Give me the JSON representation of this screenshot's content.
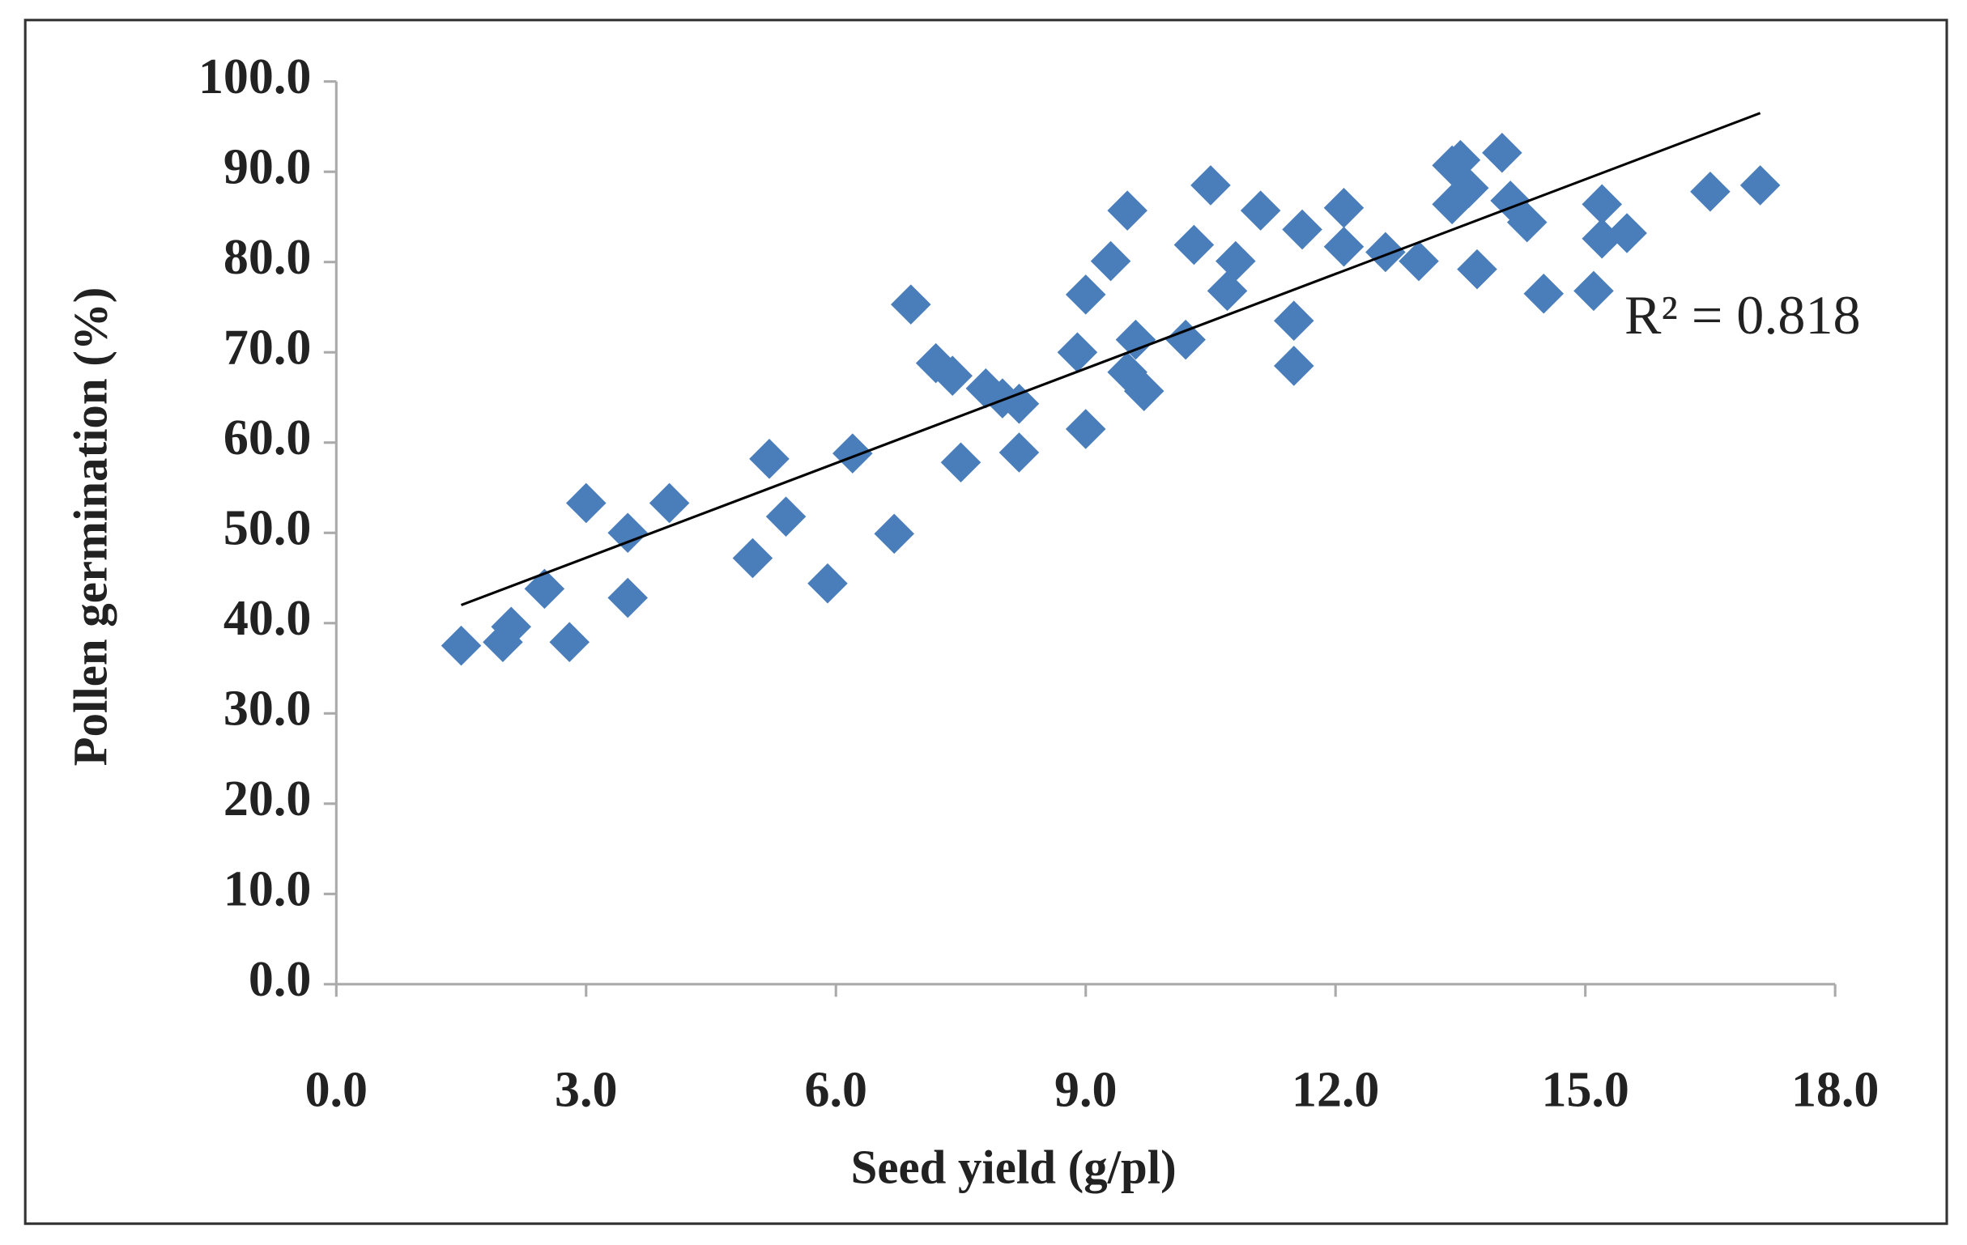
{
  "chart_data": {
    "type": "scatter",
    "x_label": "Seed yield (g/pl)",
    "y_label": "Pollen germination (%)",
    "annotation": "R² = 0.818",
    "xlim": [
      0,
      18
    ],
    "ylim": [
      0,
      100
    ],
    "xticks": [
      {
        "value": 0,
        "label": "0.0"
      },
      {
        "value": 3,
        "label": "3.0"
      },
      {
        "value": 6,
        "label": "6.0"
      },
      {
        "value": 9,
        "label": "9.0"
      },
      {
        "value": 12,
        "label": "12.0"
      },
      {
        "value": 15,
        "label": "15.0"
      },
      {
        "value": 18,
        "label": "18.0"
      }
    ],
    "yticks": [
      {
        "value": 0,
        "label": "0.0"
      },
      {
        "value": 10,
        "label": "10.0"
      },
      {
        "value": 20,
        "label": "20.0"
      },
      {
        "value": 30,
        "label": "30.0"
      },
      {
        "value": 40,
        "label": "40.0"
      },
      {
        "value": 50,
        "label": "50.0"
      },
      {
        "value": 60,
        "label": "60.0"
      },
      {
        "value": 70,
        "label": "70.0"
      },
      {
        "value": 80,
        "label": "80.0"
      },
      {
        "value": 90,
        "label": "90.0"
      },
      {
        "value": 100,
        "label": "100.0"
      }
    ],
    "color": "#4a7ebb",
    "x": [
      1.5,
      2.0,
      2.1,
      2.5,
      2.8,
      3.0,
      3.5,
      3.5,
      4.0,
      5.0,
      5.2,
      5.4,
      5.9,
      6.2,
      6.7,
      6.9,
      7.2,
      7.4,
      7.5,
      7.8,
      8.0,
      8.2,
      8.2,
      8.9,
      9.0,
      9.0,
      9.3,
      9.5,
      9.5,
      9.6,
      9.7,
      10.2,
      10.3,
      10.5,
      10.7,
      10.8,
      11.1,
      11.5,
      11.5,
      11.6,
      12.1,
      12.1,
      12.6,
      13.0,
      13.4,
      13.4,
      13.5,
      13.6,
      13.7,
      14.0,
      14.1,
      14.3,
      14.5,
      15.1,
      15.2,
      15.2,
      15.5,
      16.5,
      17.1
    ],
    "values": [
      37.5,
      37.9,
      39.6,
      43.8,
      37.9,
      53.3,
      42.8,
      50.0,
      53.3,
      47.2,
      58.2,
      51.8,
      44.4,
      58.8,
      49.9,
      75.3,
      68.8,
      67.4,
      57.8,
      66.0,
      64.9,
      64.3,
      58.9,
      70.0,
      61.5,
      76.4,
      80.1,
      85.7,
      67.8,
      71.4,
      65.7,
      71.4,
      81.9,
      88.5,
      76.8,
      80.1,
      85.7,
      73.5,
      68.5,
      83.6,
      86.0,
      81.7,
      81.1,
      80.1,
      90.7,
      86.4,
      91.3,
      88.2,
      79.2,
      92.1,
      86.8,
      84.4,
      76.5,
      76.8,
      82.6,
      86.4,
      83.2,
      87.8,
      88.5
    ],
    "trendline": {
      "x": [
        1.5,
        17.1
      ],
      "values": [
        42,
        96.5
      ],
      "color": "#000000"
    }
  }
}
